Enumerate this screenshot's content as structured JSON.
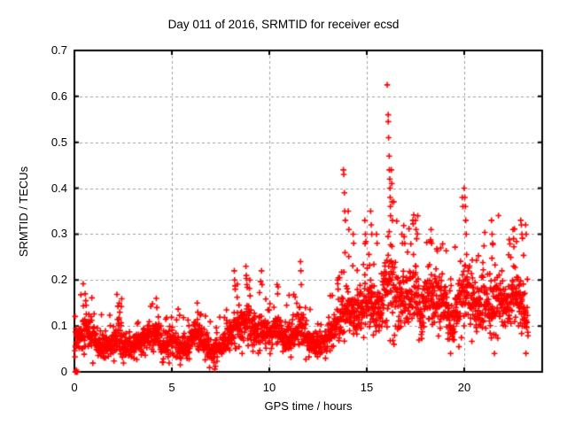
{
  "window": {
    "background": "#ffffff",
    "text_color": "#000000"
  },
  "chart_data": {
    "type": "scatter",
    "title": "Day 011 of 2016, SRMTID for receiver ecsd",
    "xlabel": "GPS time / hours",
    "ylabel": "SRMTID / TECUs",
    "series_name": "SRMTID",
    "xlim": [
      0,
      24
    ],
    "ylim": [
      0,
      0.7
    ],
    "xticks": {
      "values": [
        0,
        5,
        10,
        15,
        20
      ],
      "labels": [
        "0",
        "5",
        "10",
        "15",
        "20"
      ]
    },
    "yticks": {
      "values": [
        0,
        0.1,
        0.2,
        0.3,
        0.4,
        0.5,
        0.6,
        0.7
      ],
      "labels": [
        "0",
        "0.1",
        "0.2",
        "0.3",
        "0.4",
        "0.5",
        "0.6",
        "0.7"
      ]
    },
    "grid": {
      "visible": true,
      "style": "dashed",
      "color": "#9e9e9e"
    },
    "frame_color": "#000000",
    "marker": {
      "shape": "plus",
      "color": "#ff0000",
      "size": 7
    },
    "envelope_t_lo_hi": [
      [
        0.0,
        0.04,
        0.1
      ],
      [
        0.3,
        0.04,
        0.11
      ],
      [
        0.55,
        0.05,
        0.14
      ],
      [
        0.8,
        0.04,
        0.12
      ],
      [
        1.2,
        0.03,
        0.09
      ],
      [
        1.6,
        0.03,
        0.08
      ],
      [
        2.0,
        0.04,
        0.1
      ],
      [
        2.3,
        0.04,
        0.12
      ],
      [
        2.6,
        0.03,
        0.09
      ],
      [
        3.0,
        0.03,
        0.08
      ],
      [
        3.4,
        0.04,
        0.09
      ],
      [
        3.8,
        0.04,
        0.1
      ],
      [
        4.2,
        0.05,
        0.13
      ],
      [
        4.6,
        0.03,
        0.09
      ],
      [
        5.0,
        0.04,
        0.1
      ],
      [
        5.4,
        0.03,
        0.09
      ],
      [
        5.8,
        0.03,
        0.08
      ],
      [
        6.2,
        0.05,
        0.12
      ],
      [
        6.6,
        0.04,
        0.1
      ],
      [
        7.0,
        0.02,
        0.07
      ],
      [
        7.4,
        0.03,
        0.08
      ],
      [
        7.8,
        0.04,
        0.1
      ],
      [
        8.2,
        0.05,
        0.13
      ],
      [
        8.6,
        0.06,
        0.14
      ],
      [
        8.9,
        0.07,
        0.16
      ],
      [
        9.2,
        0.05,
        0.12
      ],
      [
        9.6,
        0.06,
        0.14
      ],
      [
        10.0,
        0.04,
        0.1
      ],
      [
        10.4,
        0.06,
        0.14
      ],
      [
        10.8,
        0.04,
        0.11
      ],
      [
        11.2,
        0.05,
        0.12
      ],
      [
        11.6,
        0.06,
        0.14
      ],
      [
        12.0,
        0.04,
        0.1
      ],
      [
        12.4,
        0.03,
        0.08
      ],
      [
        12.8,
        0.04,
        0.09
      ],
      [
        13.2,
        0.05,
        0.12
      ],
      [
        13.6,
        0.07,
        0.16
      ],
      [
        14.0,
        0.09,
        0.2
      ],
      [
        14.4,
        0.08,
        0.18
      ],
      [
        14.8,
        0.1,
        0.2
      ],
      [
        15.2,
        0.1,
        0.22
      ],
      [
        15.6,
        0.08,
        0.18
      ],
      [
        16.0,
        0.12,
        0.28
      ],
      [
        16.3,
        0.12,
        0.3
      ],
      [
        16.6,
        0.08,
        0.22
      ],
      [
        17.0,
        0.1,
        0.22
      ],
      [
        17.4,
        0.12,
        0.26
      ],
      [
        17.8,
        0.08,
        0.18
      ],
      [
        18.2,
        0.12,
        0.24
      ],
      [
        18.6,
        0.1,
        0.22
      ],
      [
        19.0,
        0.1,
        0.2
      ],
      [
        19.4,
        0.06,
        0.16
      ],
      [
        19.8,
        0.1,
        0.24
      ],
      [
        20.2,
        0.12,
        0.26
      ],
      [
        20.6,
        0.08,
        0.18
      ],
      [
        21.0,
        0.1,
        0.22
      ],
      [
        21.4,
        0.08,
        0.2
      ],
      [
        21.8,
        0.1,
        0.24
      ],
      [
        22.2,
        0.08,
        0.2
      ],
      [
        22.6,
        0.12,
        0.24
      ],
      [
        23.0,
        0.08,
        0.2
      ],
      [
        23.3,
        0.06,
        0.14
      ]
    ],
    "outlier_points": [
      [
        0.55,
        0.17
      ],
      [
        0.58,
        0.155
      ],
      [
        0.6,
        0.145
      ],
      [
        2.3,
        0.15
      ],
      [
        2.33,
        0.13
      ],
      [
        4.2,
        0.16
      ],
      [
        4.23,
        0.14
      ],
      [
        6.3,
        0.15
      ],
      [
        6.33,
        0.13
      ],
      [
        7.2,
        0.006
      ],
      [
        7.24,
        0.012
      ],
      [
        8.2,
        0.22
      ],
      [
        8.22,
        0.2
      ],
      [
        8.25,
        0.18
      ],
      [
        8.8,
        0.23
      ],
      [
        8.82,
        0.21
      ],
      [
        8.85,
        0.19
      ],
      [
        9.0,
        0.2
      ],
      [
        9.6,
        0.22
      ],
      [
        9.63,
        0.19
      ],
      [
        10.4,
        0.19
      ],
      [
        10.43,
        0.17
      ],
      [
        11.6,
        0.24
      ],
      [
        11.62,
        0.22
      ],
      [
        11.64,
        0.19
      ],
      [
        13.5,
        0.2
      ],
      [
        13.53,
        0.18
      ],
      [
        13.8,
        0.44
      ],
      [
        13.82,
        0.43
      ],
      [
        13.85,
        0.39
      ],
      [
        13.87,
        0.35
      ],
      [
        13.9,
        0.33
      ],
      [
        14.05,
        0.35
      ],
      [
        14.08,
        0.31
      ],
      [
        14.3,
        0.3
      ],
      [
        14.33,
        0.28
      ],
      [
        14.9,
        0.33
      ],
      [
        14.93,
        0.3
      ],
      [
        15.2,
        0.35
      ],
      [
        15.23,
        0.32
      ],
      [
        15.26,
        0.3
      ],
      [
        15.5,
        0.3
      ],
      [
        15.53,
        0.28
      ],
      [
        16.05,
        0.625
      ],
      [
        16.1,
        0.56
      ],
      [
        16.1,
        0.545
      ],
      [
        16.12,
        0.51
      ],
      [
        16.15,
        0.47
      ],
      [
        16.16,
        0.44
      ],
      [
        16.18,
        0.42
      ],
      [
        16.19,
        0.4
      ],
      [
        16.2,
        0.38
      ],
      [
        16.21,
        0.36
      ],
      [
        16.22,
        0.34
      ],
      [
        16.26,
        0.44
      ],
      [
        16.28,
        0.41
      ],
      [
        16.3,
        0.37
      ],
      [
        16.32,
        0.33
      ],
      [
        16.8,
        0.3
      ],
      [
        16.83,
        0.28
      ],
      [
        17.5,
        0.33
      ],
      [
        17.53,
        0.31
      ],
      [
        17.56,
        0.29
      ],
      [
        17.62,
        0.34
      ],
      [
        18.3,
        0.31
      ],
      [
        18.33,
        0.28
      ],
      [
        18.8,
        0.27
      ],
      [
        19.3,
        0.04
      ],
      [
        19.9,
        0.38
      ],
      [
        19.93,
        0.36
      ],
      [
        20.0,
        0.4
      ],
      [
        20.03,
        0.38
      ],
      [
        20.06,
        0.36
      ],
      [
        20.08,
        0.33
      ],
      [
        20.1,
        0.3
      ],
      [
        21.4,
        0.33
      ],
      [
        21.43,
        0.3
      ],
      [
        21.46,
        0.28
      ],
      [
        21.55,
        0.04
      ],
      [
        22.5,
        0.31
      ],
      [
        22.53,
        0.29
      ],
      [
        22.9,
        0.33
      ],
      [
        22.93,
        0.32
      ],
      [
        22.96,
        0.3
      ],
      [
        23.15,
        0.32
      ],
      [
        23.18,
        0.3
      ]
    ],
    "zero_points": [
      [
        0.04,
        0
      ],
      [
        0.07,
        0
      ],
      [
        0.1,
        0
      ],
      [
        0.13,
        0
      ],
      [
        0.16,
        0
      ],
      [
        0.1,
        0.004
      ]
    ],
    "synth": {
      "seed": 20160111,
      "dt": 0.01,
      "t_start": 0.02,
      "t_end": 23.28
    }
  }
}
